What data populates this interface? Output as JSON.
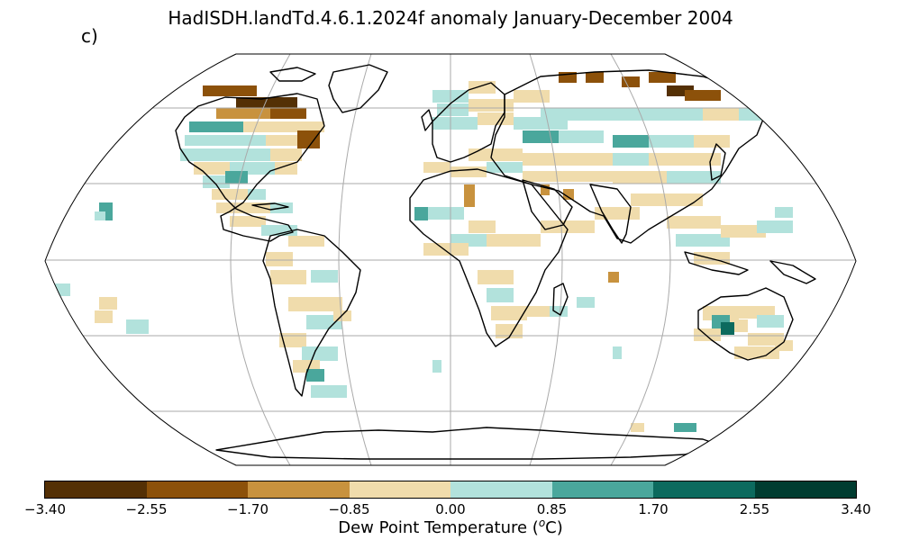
{
  "title": "HadISDH.landTd.4.6.1.2024f anomaly January-December 2004",
  "panel_label": "c)",
  "colorbar": {
    "label_prefix": "Dew Point Temperature (",
    "label_super": "o",
    "label_suffix": "C)",
    "ticks": [
      "−3.40",
      "−2.55",
      "−1.70",
      "−0.85",
      "0.00",
      "0.85",
      "1.70",
      "2.55",
      "3.40"
    ],
    "colors": [
      "#543005",
      "#8c510a",
      "#c8923e",
      "#f0dcac",
      "#b2e2dc",
      "#4aa79c",
      "#0c6a5e",
      "#003c30"
    ]
  },
  "map": {
    "projection": "Robinson",
    "gridlines": "30-degree graticule",
    "coastlines": "black"
  }
}
